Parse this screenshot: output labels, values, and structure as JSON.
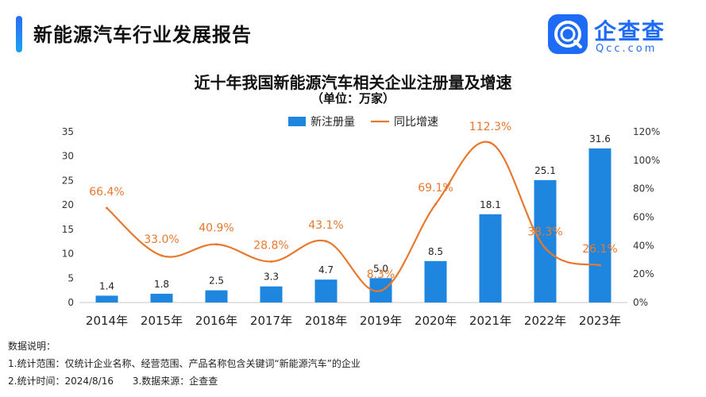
{
  "header": {
    "title": "新能源汽车行业发展报告"
  },
  "logo": {
    "name": "企查查",
    "domain": "Qcc.com"
  },
  "chart_data": {
    "type": "bar",
    "title": "近十年我国新能源汽车相关企业注册量及增速",
    "subtitle": "（单位：万家）",
    "categories": [
      "2014年",
      "2015年",
      "2016年",
      "2017年",
      "2018年",
      "2019年",
      "2020年",
      "2021年",
      "2022年",
      "2023年"
    ],
    "series": [
      {
        "name": "新注册量",
        "type": "bar",
        "axis": "left",
        "color": "#1f86e0",
        "values": [
          1.4,
          1.8,
          2.5,
          3.3,
          4.7,
          5.0,
          8.5,
          18.1,
          25.1,
          31.6
        ],
        "labels": [
          "1.4",
          "1.8",
          "2.5",
          "3.3",
          "4.7",
          "5.0",
          "8.5",
          "18.1",
          "25.1",
          "31.6"
        ]
      },
      {
        "name": "同比增速",
        "type": "line",
        "axis": "right",
        "color": "#e8782e",
        "values": [
          66.4,
          33.0,
          40.9,
          28.8,
          43.1,
          8.3,
          69.1,
          112.3,
          38.3,
          26.1
        ],
        "labels": [
          "66.4%",
          "33.0%",
          "40.9%",
          "28.8%",
          "43.1%",
          "8.3%",
          "69.1%",
          "112.3%",
          "38.3%",
          "26.1%"
        ]
      }
    ],
    "y_left": {
      "min": 0,
      "max": 35,
      "ticks": [
        "0",
        "5",
        "10",
        "15",
        "20",
        "25",
        "30",
        "35"
      ]
    },
    "y_right": {
      "min": 0,
      "max": 120,
      "ticks": [
        "0%",
        "20%",
        "40%",
        "60%",
        "80%",
        "100%",
        "120%"
      ]
    },
    "legend_position": "top-center",
    "grid": false
  },
  "notes": {
    "heading": "数据说明：",
    "line1": "1.统计范围：仅统计企业名称、经营范围、产品名称包含关键词“新能源汽车”的企业",
    "line2a": "2.统计时间：2024/8/16",
    "line2b": "3.数据来源：企查查"
  }
}
